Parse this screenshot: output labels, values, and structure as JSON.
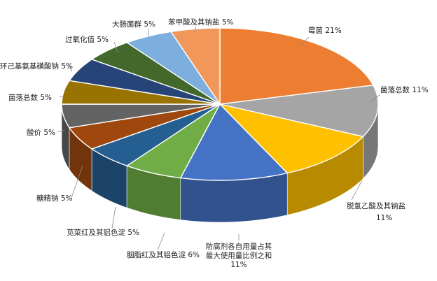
{
  "chart_data": {
    "type": "pie",
    "title": "",
    "slices": [
      {
        "name": "霉菌",
        "pct_label": "21%",
        "value": 21,
        "color": "#ED7D31"
      },
      {
        "name": "菌落总数",
        "pct_label": "11%",
        "value": 11,
        "color": "#A5A5A5"
      },
      {
        "name": "脱氢乙酸及其钠盐",
        "pct_label": "11%",
        "value": 11,
        "color": "#FFC000"
      },
      {
        "name": "防腐剂各自用量占其最大使用量比例之和",
        "pct_label": "11%",
        "value": 11,
        "color": "#4472C4"
      },
      {
        "name": "胭脂红及其铝色淀",
        "pct_label": "6%",
        "value": 6,
        "color": "#70AD47"
      },
      {
        "name": "苋菜红及其铝色淀",
        "pct_label": "5%",
        "value": 5,
        "color": "#255E91"
      },
      {
        "name": "糖精钠",
        "pct_label": "5%",
        "value": 5,
        "color": "#9E480E"
      },
      {
        "name": "酸价",
        "pct_label": "5%",
        "value": 5,
        "color": "#636363"
      },
      {
        "name": "菌落总数",
        "pct_label": "5%",
        "value": 5,
        "color": "#997300"
      },
      {
        "name": "环己基氨基磺酸钠",
        "pct_label": "5%",
        "value": 5,
        "color": "#264478"
      },
      {
        "name": "过氧化值",
        "pct_label": "5%",
        "value": 5,
        "color": "#43682B"
      },
      {
        "name": "大肠菌群",
        "pct_label": "5%",
        "value": 5,
        "color": "#7CAFDD"
      },
      {
        "name": "苯甲酸及其钠盐",
        "pct_label": "5%",
        "value": 5,
        "color": "#F1975A"
      }
    ]
  }
}
